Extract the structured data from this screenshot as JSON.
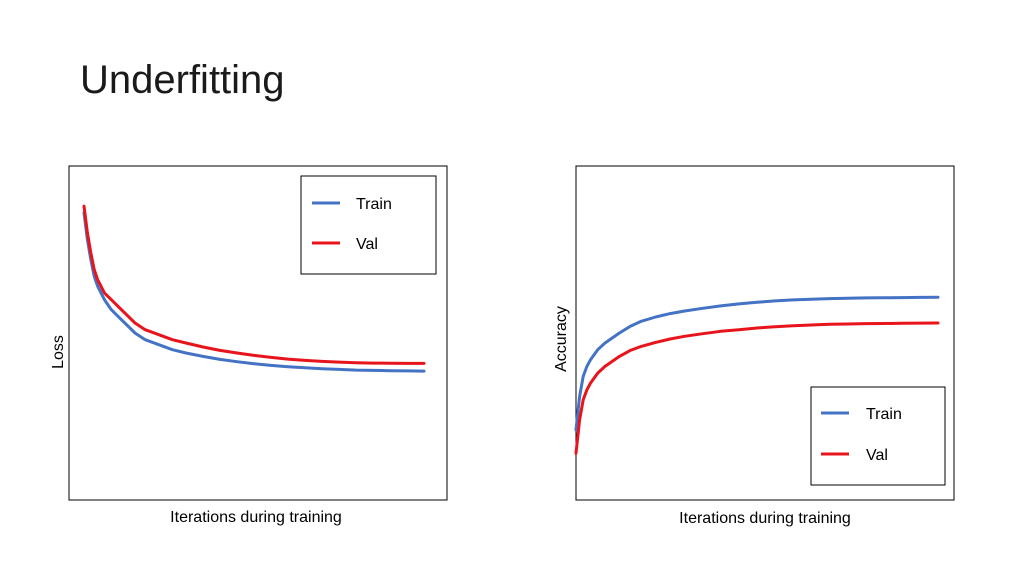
{
  "slide": {
    "title": "Underfitting"
  },
  "colors": {
    "train": "#4472C4",
    "val": "#E8141B",
    "frame": "#000000"
  },
  "chart_data": [
    {
      "type": "line",
      "title": "",
      "xlabel": "Iterations during training",
      "ylabel": "Loss",
      "xlim": [
        0,
        100
      ],
      "ylim": [
        0,
        100
      ],
      "ticks": false,
      "grid": false,
      "legend_position": "top-right",
      "legend_labels": [
        "Train",
        "Val"
      ],
      "series": [
        {
          "name": "Train",
          "x": [
            0,
            1,
            2,
            3,
            4,
            5,
            6,
            8,
            10,
            12,
            15,
            18,
            22,
            26,
            30,
            35,
            40,
            45,
            50,
            55,
            60,
            65,
            70,
            75,
            80,
            85,
            90,
            95,
            100
          ],
          "y": [
            86,
            78,
            72,
            67,
            64,
            62,
            60,
            57,
            55,
            53,
            50,
            48,
            46.5,
            45,
            44,
            43,
            42.1,
            41.4,
            40.8,
            40.3,
            39.9,
            39.6,
            39.3,
            39.1,
            38.9,
            38.8,
            38.7,
            38.65,
            38.6
          ]
        },
        {
          "name": "Val",
          "x": [
            0,
            1,
            2,
            3,
            4,
            5,
            6,
            8,
            10,
            12,
            15,
            18,
            22,
            26,
            30,
            35,
            40,
            45,
            50,
            55,
            60,
            65,
            70,
            75,
            80,
            85,
            90,
            95,
            100
          ],
          "y": [
            88,
            80,
            74,
            69,
            66,
            64,
            62,
            60,
            58,
            56,
            53,
            51,
            49.5,
            48,
            47,
            45.8,
            44.8,
            44,
            43.3,
            42.7,
            42.2,
            41.8,
            41.5,
            41.3,
            41.1,
            41,
            40.95,
            40.9,
            40.9
          ]
        }
      ]
    },
    {
      "type": "line",
      "title": "",
      "xlabel": "Iterations during training",
      "ylabel": "Accuracy",
      "xlim": [
        0,
        100
      ],
      "ylim": [
        0,
        100
      ],
      "ticks": false,
      "grid": false,
      "legend_position": "bottom-right",
      "legend_labels": [
        "Train",
        "Val"
      ],
      "series": [
        {
          "name": "Train",
          "x": [
            0,
            1,
            2,
            3,
            4,
            5,
            6,
            8,
            10,
            12,
            15,
            18,
            22,
            26,
            30,
            35,
            40,
            45,
            50,
            55,
            60,
            65,
            70,
            75,
            80,
            85,
            90,
            95,
            100
          ],
          "y": [
            21,
            31,
            37,
            40,
            42,
            43.5,
            45,
            47,
            48.5,
            50,
            52,
            53.5,
            54.8,
            55.8,
            56.6,
            57.4,
            58.1,
            58.7,
            59.2,
            59.6,
            59.9,
            60.1,
            60.3,
            60.4,
            60.5,
            60.55,
            60.6,
            60.65,
            60.7
          ]
        },
        {
          "name": "Val",
          "x": [
            0,
            1,
            2,
            3,
            4,
            5,
            6,
            8,
            10,
            12,
            15,
            18,
            22,
            26,
            30,
            35,
            40,
            45,
            50,
            55,
            60,
            65,
            70,
            75,
            80,
            85,
            90,
            95,
            100
          ],
          "y": [
            14,
            24,
            30,
            33,
            35,
            36.5,
            38,
            40,
            41.5,
            43,
            44.8,
            46,
            47.2,
            48.2,
            49,
            49.8,
            50.5,
            51,
            51.5,
            51.9,
            52.2,
            52.4,
            52.6,
            52.7,
            52.8,
            52.85,
            52.9,
            52.95,
            53
          ]
        }
      ]
    }
  ]
}
